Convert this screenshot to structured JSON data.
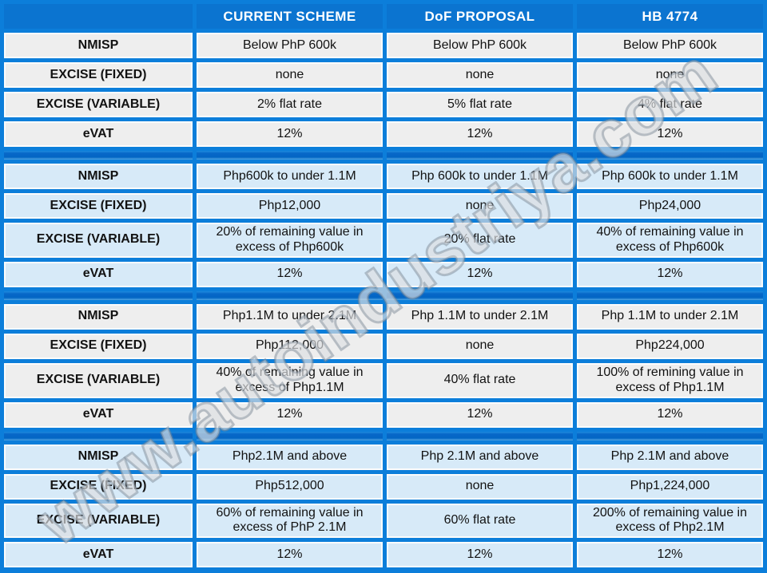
{
  "chart_data": {
    "type": "table",
    "columns": [
      "",
      "CURRENT SCHEME",
      "DoF PROPOSAL",
      "HB 4774"
    ],
    "groups": [
      {
        "theme": "gray",
        "rows": [
          {
            "label": "NMISP",
            "values": [
              "Below PhP 600k",
              "Below PhP 600k",
              "Below PhP 600k"
            ]
          },
          {
            "label": "EXCISE (FIXED)",
            "values": [
              "none",
              "none",
              "none"
            ]
          },
          {
            "label": "EXCISE (VARIABLE)",
            "values": [
              "2% flat rate",
              "5% flat rate",
              "4% flat rate"
            ]
          },
          {
            "label": "eVAT",
            "values": [
              "12%",
              "12%",
              "12%"
            ]
          }
        ]
      },
      {
        "theme": "blue",
        "rows": [
          {
            "label": "NMISP",
            "values": [
              "Php600k to under 1.1M",
              "Php 600k to under 1.1M",
              "Php 600k to under 1.1M"
            ]
          },
          {
            "label": "EXCISE (FIXED)",
            "values": [
              "Php12,000",
              "none",
              "Php24,000"
            ]
          },
          {
            "label": "EXCISE (VARIABLE)",
            "values": [
              "20% of remaining value in excess of Php600k",
              "20% flat rate",
              "40% of remaining value in excess of Php600k"
            ]
          },
          {
            "label": "eVAT",
            "values": [
              "12%",
              "12%",
              "12%"
            ]
          }
        ]
      },
      {
        "theme": "gray",
        "rows": [
          {
            "label": "NMISP",
            "values": [
              "Php1.1M to under 2.1M",
              "Php 1.1M to under 2.1M",
              "Php 1.1M to under 2.1M"
            ]
          },
          {
            "label": "EXCISE (FIXED)",
            "values": [
              "Php112,000",
              "none",
              "Php224,000"
            ]
          },
          {
            "label": "EXCISE (VARIABLE)",
            "values": [
              "40% of remaining value in excess of Php1.1M",
              "40% flat rate",
              "100% of remining value in excess of Php1.1M"
            ]
          },
          {
            "label": "eVAT",
            "values": [
              "12%",
              "12%",
              "12%"
            ]
          }
        ]
      },
      {
        "theme": "blue",
        "rows": [
          {
            "label": "NMISP",
            "values": [
              "Php2.1M and above",
              "Php 2.1M and above",
              "Php 2.1M and above"
            ]
          },
          {
            "label": "EXCISE (FIXED)",
            "values": [
              "Php512,000",
              "none",
              "Php1,224,000"
            ]
          },
          {
            "label": "EXCISE (VARIABLE)",
            "values": [
              "60% of remaining value in excess of PhP 2.1M",
              "60% flat rate",
              "200% of remaining value in excess of Php2.1M"
            ]
          },
          {
            "label": "eVAT",
            "values": [
              "12%",
              "12%",
              "12%"
            ]
          }
        ]
      }
    ]
  },
  "watermark": {
    "text": "www.autoindustriya.com"
  },
  "colors": {
    "background_blue": "#0C7EDA",
    "header_blue": "#0B74D0",
    "separator_dark_blue": "#0366C4",
    "gray_cell": "#EEEEEE",
    "light_blue_cell": "#D7EAF8",
    "cell_border": "#FCFCFC",
    "header_text": "#FFFFFF",
    "body_text": "#121212"
  }
}
